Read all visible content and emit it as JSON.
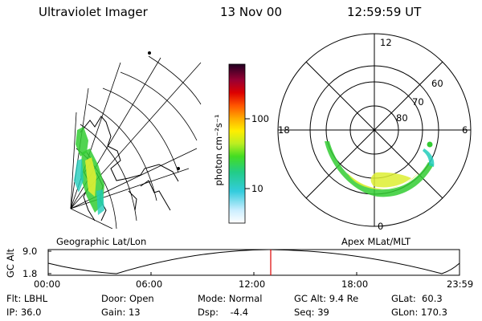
{
  "header": {
    "instrument": "Ultraviolet Imager",
    "date": "13 Nov 00",
    "time": "12:59:59 UT"
  },
  "colorbar": {
    "unit_label": "photon cm⁻²s⁻¹",
    "tick_labels": [
      "100",
      "10"
    ]
  },
  "geographic_panel": {
    "label": "Geographic Lat/Lon"
  },
  "polar_panel": {
    "label": "Apex MLat/MLT",
    "mlt_labels": [
      "12",
      "18",
      "6",
      "0"
    ],
    "lat_labels": [
      "60",
      "70",
      "80"
    ]
  },
  "altitude_plot": {
    "ylabel": "GC Alt",
    "y_ticks": [
      "9.0",
      "1.8"
    ],
    "x_ticks": [
      "00:00",
      "06:00",
      "12:00",
      "18:00",
      "23:59"
    ]
  },
  "info": {
    "col1": [
      "Flt: LBHL",
      "IP: 36.0"
    ],
    "col2": [
      "Door: Open",
      "Gain: 13"
    ],
    "col3": [
      "Mode: Normal",
      "Dsp:    -4.4"
    ],
    "col4": [
      "GC Alt: 9.4 Re",
      "Seq: 39"
    ],
    "col5": [
      "GLat:  60.3",
      "GLon: 170.3"
    ]
  },
  "colors": {
    "aurora_green": "#33cc33",
    "aurora_cyan": "#22ccbb",
    "aurora_yellow": "#ddee33",
    "marker_red": "#dd0000"
  }
}
